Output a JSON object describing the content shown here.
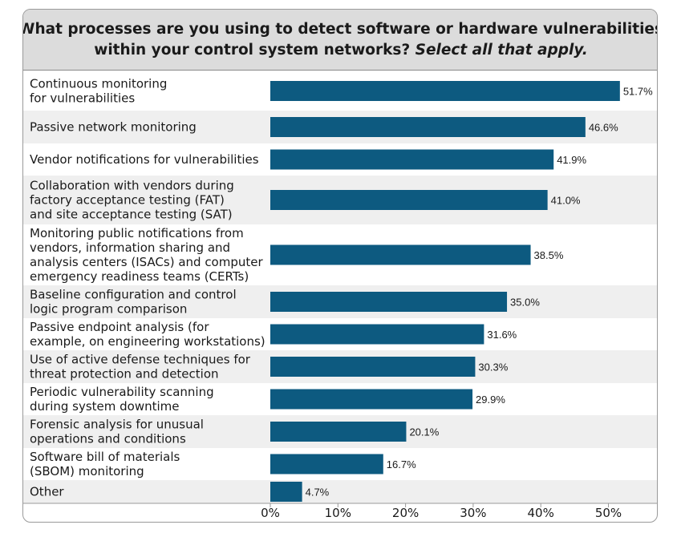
{
  "title": {
    "line1": "What processes are you using to detect software or hardware vulnerabilities",
    "line2_bold": "within your control system networks?",
    "line2_italic": "Select all that apply."
  },
  "colors": {
    "bar": "#0d5a80",
    "band": "#efefef",
    "header_bg": "#dcdcdc"
  },
  "chart_data": {
    "type": "bar",
    "orientation": "horizontal",
    "categories": [
      [
        "Continuous monitoring",
        "for vulnerabilities"
      ],
      [
        "Passive network monitoring"
      ],
      [
        "Vendor notifications for vulnerabilities"
      ],
      [
        "Collaboration with vendors during",
        "factory acceptance testing (FAT)",
        "and site acceptance testing (SAT)"
      ],
      [
        "Monitoring public notifications from",
        "vendors, information sharing and",
        "analysis centers (ISACs) and computer",
        "emergency readiness teams (CERTs)"
      ],
      [
        "Baseline configuration and control",
        "logic program comparison"
      ],
      [
        "Passive endpoint analysis (for",
        "example, on engineering workstations)"
      ],
      [
        "Use of active defense techniques for",
        "threat protection and detection"
      ],
      [
        "Periodic vulnerability scanning",
        "during system downtime"
      ],
      [
        "Forensic analysis for unusual",
        "operations and conditions"
      ],
      [
        "Software bill of materials",
        "(SBOM) monitoring"
      ],
      [
        "Other"
      ]
    ],
    "values": [
      51.7,
      46.6,
      41.9,
      41.0,
      38.5,
      35.0,
      31.6,
      30.3,
      29.9,
      20.1,
      16.7,
      4.7
    ],
    "value_labels": [
      "51.7%",
      "46.6%",
      "41.9%",
      "41.0%",
      "38.5%",
      "35.0%",
      "31.6%",
      "30.3%",
      "29.9%",
      "20.1%",
      "16.7%",
      "4.7%"
    ],
    "xticks": [
      "0%",
      "10%",
      "20%",
      "30%",
      "40%",
      "50%"
    ],
    "xtick_values": [
      0,
      10,
      20,
      30,
      40,
      50
    ],
    "xlim": [
      0,
      55
    ],
    "grid": false,
    "legend": "none"
  }
}
